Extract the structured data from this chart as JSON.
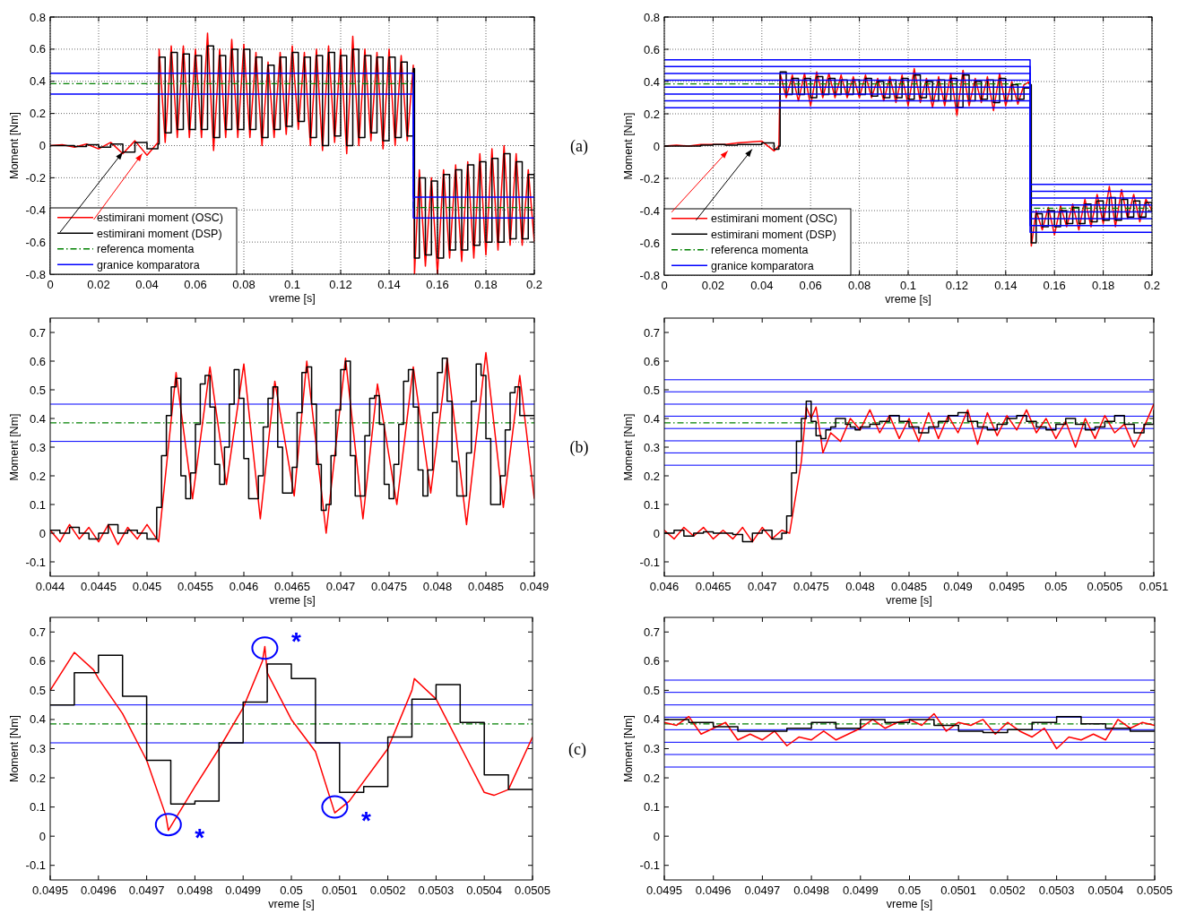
{
  "chart_data": [
    {
      "type": "line",
      "xlabel": "vreme [s]",
      "ylabel": "Moment [Nm]",
      "xlim": [
        0,
        0.2
      ],
      "ylim": [
        -0.8,
        0.8
      ],
      "xticks": [
        0,
        0.02,
        0.04,
        0.06,
        0.08,
        0.1,
        0.12,
        0.14,
        0.16,
        0.18,
        0.2
      ],
      "yticks": [
        -0.8,
        -0.6,
        -0.4,
        -0.2,
        0,
        0.2,
        0.4,
        0.6,
        0.8
      ],
      "grid": true,
      "legend": "bottom left",
      "annotations": [
        "(a)"
      ],
      "x": [
        0,
        0.005,
        0.01,
        0.015,
        0.02,
        0.025,
        0.03,
        0.035,
        0.04,
        0.0445,
        0.045,
        0.0475,
        0.05,
        0.0525,
        0.055,
        0.0575,
        0.06,
        0.0625,
        0.065,
        0.0675,
        0.07,
        0.0725,
        0.075,
        0.0775,
        0.08,
        0.0825,
        0.085,
        0.0875,
        0.09,
        0.0925,
        0.095,
        0.0975,
        0.1,
        0.1025,
        0.105,
        0.1075,
        0.11,
        0.1125,
        0.115,
        0.1175,
        0.12,
        0.1225,
        0.125,
        0.1275,
        0.13,
        0.1325,
        0.135,
        0.1375,
        0.14,
        0.1425,
        0.145,
        0.1475,
        0.15,
        0.1505,
        0.1525,
        0.155,
        0.1575,
        0.16,
        0.1625,
        0.165,
        0.1675,
        0.17,
        0.1725,
        0.175,
        0.1775,
        0.18,
        0.1825,
        0.185,
        0.1875,
        0.19,
        0.1925,
        0.195,
        0.1975,
        0.2
      ],
      "series": [
        {
          "name": "estimirani moment (OSC)",
          "color": "#ff0000",
          "values": [
            0,
            0.005,
            -0.01,
            0.01,
            -0.02,
            0.02,
            -0.05,
            0.03,
            -0.06,
            0.02,
            0.6,
            0.02,
            0.62,
            0.05,
            0.62,
            0.05,
            0.6,
            0.05,
            0.7,
            -0.03,
            0.6,
            0.05,
            0.66,
            0.05,
            0.63,
            0.05,
            0.58,
            0.0,
            0.52,
            0.05,
            0.58,
            0.07,
            0.62,
            0.1,
            0.58,
            0.0,
            0.6,
            -0.03,
            0.62,
            0.02,
            0.6,
            -0.05,
            0.68,
            0.0,
            0.6,
            0.03,
            0.58,
            -0.02,
            0.6,
            0.0,
            0.56,
            0.03,
            0.5,
            -0.8,
            -0.15,
            -0.75,
            -0.2,
            -0.8,
            -0.15,
            -0.7,
            -0.12,
            -0.72,
            -0.1,
            -0.7,
            -0.05,
            -0.68,
            -0.02,
            -0.65,
            0.0,
            -0.62,
            -0.05,
            -0.62,
            -0.15,
            -0.6
          ]
        },
        {
          "name": "estimirani moment (DSP)",
          "color": "#000000",
          "type": "step",
          "values": [
            0,
            0,
            -0.005,
            0.005,
            -0.01,
            0.01,
            -0.04,
            0.02,
            -0.02,
            0.01,
            0.55,
            0.08,
            0.58,
            0.1,
            0.57,
            0.1,
            0.56,
            0.1,
            0.62,
            0.05,
            0.56,
            0.1,
            0.6,
            0.1,
            0.6,
            0.1,
            0.55,
            0.05,
            0.5,
            0.1,
            0.55,
            0.12,
            0.58,
            0.15,
            0.55,
            0.05,
            0.56,
            0.0,
            0.58,
            0.06,
            0.56,
            0.0,
            0.6,
            0.05,
            0.56,
            0.08,
            0.55,
            0.03,
            0.55,
            0.05,
            0.52,
            0.06,
            0.48,
            -0.7,
            -0.2,
            -0.68,
            -0.22,
            -0.7,
            -0.18,
            -0.65,
            -0.15,
            -0.65,
            -0.12,
            -0.62,
            -0.1,
            -0.6,
            -0.08,
            -0.6,
            -0.05,
            -0.58,
            -0.1,
            -0.58,
            -0.18,
            -0.55
          ]
        },
        {
          "name": "referenca momenta",
          "color": "#008000",
          "type": "step",
          "line_style": "dashed",
          "x": [
            0,
            0.15,
            0.2
          ],
          "values": [
            0.385,
            -0.385,
            -0.385
          ]
        },
        {
          "name": "granice komparatora",
          "color": "#0000ff",
          "type": "step",
          "x": [
            0,
            0.15,
            0.2
          ],
          "values": [
            0.45,
            -0.32,
            -0.32
          ]
        },
        {
          "color": "#0000ff",
          "type": "step",
          "x": [
            0,
            0.15,
            0.2
          ],
          "values": [
            0.32,
            -0.45,
            -0.45
          ]
        }
      ]
    },
    {
      "type": "line",
      "xlabel": "vreme [s]",
      "ylabel": "Moment [Nm]",
      "xlim": [
        0,
        0.2
      ],
      "ylim": [
        -0.8,
        0.8
      ],
      "xticks": [
        0,
        0.02,
        0.04,
        0.06,
        0.08,
        0.1,
        0.12,
        0.14,
        0.16,
        0.18,
        0.2
      ],
      "yticks": [
        -0.8,
        -0.6,
        -0.4,
        -0.2,
        0,
        0.2,
        0.4,
        0.6,
        0.8
      ],
      "grid": true,
      "legend": "bottom left",
      "x": [
        0,
        0.005,
        0.01,
        0.015,
        0.02,
        0.025,
        0.03,
        0.035,
        0.04,
        0.045,
        0.047,
        0.0475,
        0.05,
        0.0525,
        0.055,
        0.0575,
        0.06,
        0.0625,
        0.065,
        0.0675,
        0.07,
        0.0725,
        0.075,
        0.0775,
        0.08,
        0.0825,
        0.085,
        0.0875,
        0.09,
        0.0925,
        0.095,
        0.0975,
        0.1,
        0.1025,
        0.105,
        0.1075,
        0.11,
        0.1125,
        0.115,
        0.1175,
        0.12,
        0.1225,
        0.125,
        0.1275,
        0.13,
        0.1325,
        0.135,
        0.1375,
        0.14,
        0.1425,
        0.145,
        0.1475,
        0.15,
        0.1505,
        0.1525,
        0.155,
        0.1575,
        0.16,
        0.1625,
        0.165,
        0.1675,
        0.17,
        0.1725,
        0.175,
        0.1775,
        0.18,
        0.1825,
        0.185,
        0.1875,
        0.19,
        0.1925,
        0.195,
        0.1975,
        0.2
      ],
      "series": [
        {
          "name": "estimirani moment (OSC)",
          "color": "#ff0000",
          "values": [
            0,
            0.005,
            0,
            0.01,
            0.01,
            0.01,
            0.02,
            0.025,
            0.03,
            -0.03,
            0.0,
            0.45,
            0.3,
            0.44,
            0.28,
            0.45,
            0.25,
            0.46,
            0.3,
            0.45,
            0.3,
            0.44,
            0.3,
            0.43,
            0.3,
            0.44,
            0.3,
            0.42,
            0.28,
            0.43,
            0.27,
            0.44,
            0.25,
            0.48,
            0.27,
            0.42,
            0.24,
            0.43,
            0.25,
            0.45,
            0.19,
            0.47,
            0.25,
            0.42,
            0.27,
            0.43,
            0.22,
            0.45,
            0.25,
            0.4,
            0.26,
            0.38,
            0.4,
            -0.62,
            -0.4,
            -0.52,
            -0.38,
            -0.55,
            -0.37,
            -0.5,
            -0.36,
            -0.52,
            -0.33,
            -0.5,
            -0.3,
            -0.48,
            -0.25,
            -0.5,
            -0.27,
            -0.45,
            -0.3,
            -0.47,
            -0.33,
            -0.4
          ]
        },
        {
          "name": "estimirani moment (DSP)",
          "color": "#000000",
          "type": "step",
          "values": [
            0,
            0,
            0,
            0.005,
            0.01,
            0.005,
            0.01,
            0.01,
            0.02,
            -0.02,
            0.0,
            0.46,
            0.32,
            0.42,
            0.32,
            0.42,
            0.3,
            0.43,
            0.32,
            0.42,
            0.32,
            0.41,
            0.32,
            0.41,
            0.32,
            0.42,
            0.31,
            0.4,
            0.3,
            0.41,
            0.3,
            0.42,
            0.29,
            0.44,
            0.3,
            0.4,
            0.28,
            0.41,
            0.28,
            0.42,
            0.24,
            0.44,
            0.28,
            0.4,
            0.29,
            0.41,
            0.27,
            0.42,
            0.28,
            0.38,
            0.29,
            0.36,
            0.38,
            -0.6,
            -0.42,
            -0.5,
            -0.4,
            -0.5,
            -0.4,
            -0.48,
            -0.38,
            -0.48,
            -0.36,
            -0.47,
            -0.34,
            -0.46,
            -0.32,
            -0.46,
            -0.33,
            -0.44,
            -0.34,
            -0.44,
            -0.35,
            -0.4
          ]
        },
        {
          "name": "referenca momenta",
          "color": "#008000",
          "type": "step",
          "line_style": "dashed",
          "x": [
            0,
            0.15,
            0.2
          ],
          "values": [
            0.385,
            -0.385,
            -0.385
          ]
        },
        {
          "name": "granice komparatora",
          "color": "#0000ff",
          "type": "step",
          "x": [
            0,
            0.15,
            0.2
          ],
          "values": [
            0.535,
            -0.237,
            -0.237
          ]
        },
        {
          "color": "#0000ff",
          "type": "step",
          "x": [
            0,
            0.15,
            0.2
          ],
          "values": [
            0.493,
            -0.28,
            -0.28
          ]
        },
        {
          "color": "#0000ff",
          "type": "step",
          "x": [
            0,
            0.15,
            0.2
          ],
          "values": [
            0.45,
            -0.322,
            -0.322
          ]
        },
        {
          "color": "#0000ff",
          "type": "step",
          "x": [
            0,
            0.15,
            0.2
          ],
          "values": [
            0.408,
            -0.365,
            -0.365
          ]
        },
        {
          "color": "#0000ff",
          "type": "step",
          "x": [
            0,
            0.15,
            0.2
          ],
          "values": [
            0.365,
            -0.408,
            -0.408
          ]
        },
        {
          "color": "#0000ff",
          "type": "step",
          "x": [
            0,
            0.15,
            0.2
          ],
          "values": [
            0.322,
            -0.45,
            -0.45
          ]
        },
        {
          "color": "#0000ff",
          "type": "step",
          "x": [
            0,
            0.15,
            0.2
          ],
          "values": [
            0.28,
            -0.493,
            -0.493
          ]
        },
        {
          "color": "#0000ff",
          "type": "step",
          "x": [
            0,
            0.15,
            0.2
          ],
          "values": [
            0.237,
            -0.535,
            -0.535
          ]
        }
      ]
    },
    {
      "type": "line",
      "xlabel": "vreme [s]",
      "ylabel": "Moment [Nm]",
      "xlim": [
        0.044,
        0.049
      ],
      "ylim": [
        -0.15,
        0.75
      ],
      "xticks": [
        0.044,
        0.0445,
        0.045,
        0.0455,
        0.046,
        0.0465,
        0.047,
        0.0475,
        0.048,
        0.0485,
        0.049
      ],
      "yticks": [
        -0.1,
        0,
        0.1,
        0.2,
        0.3,
        0.4,
        0.5,
        0.6,
        0.7
      ],
      "annotations": [
        "(b)"
      ],
      "ref_lines": [
        {
          "axis": "y",
          "value": 0.45,
          "color": "#0000ff"
        },
        {
          "axis": "y",
          "value": 0.385,
          "color": "#008000",
          "line_style": "dashed"
        },
        {
          "axis": "y",
          "value": 0.32,
          "color": "#0000ff"
        }
      ],
      "series": [
        {
          "color": "#ff0000",
          "x": [
            0.044,
            0.0441,
            0.0442,
            0.0443,
            0.0444,
            0.0445,
            0.0446,
            0.0447,
            0.0448,
            0.0449,
            0.045,
            0.04512,
            0.0453,
            0.04547,
            0.04565,
            0.04582,
            0.046,
            0.04617,
            0.04632,
            0.04652,
            0.04665,
            0.04685,
            0.04705,
            0.04723,
            0.04738,
            0.04758,
            0.04775,
            0.04793,
            0.0481,
            0.0483,
            0.0485,
            0.04868,
            0.04885,
            0.049
          ],
          "values": [
            0.01,
            -0.03,
            0.03,
            -0.02,
            0.02,
            -0.03,
            0.03,
            -0.04,
            0.02,
            -0.02,
            0.03,
            -0.03,
            0.56,
            0.12,
            0.58,
            0.17,
            0.59,
            0.05,
            0.53,
            0.13,
            0.6,
            0.0,
            0.61,
            0.05,
            0.52,
            0.1,
            0.58,
            0.14,
            0.61,
            0.03,
            0.63,
            0.09,
            0.55,
            0.12
          ]
        },
        {
          "color": "#000000",
          "type": "step",
          "x": [
            0.044,
            0.0441,
            0.0442,
            0.0443,
            0.0444,
            0.0445,
            0.0446,
            0.0447,
            0.0448,
            0.0449,
            0.045,
            0.04505,
            0.0451,
            0.04515,
            0.0452,
            0.04525,
            0.0453,
            0.04535,
            0.0454,
            0.04545,
            0.0455,
            0.04555,
            0.0456,
            0.04565,
            0.0457,
            0.04575,
            0.0458,
            0.04585,
            0.0459,
            0.04595,
            0.046,
            0.04605,
            0.0461,
            0.04615,
            0.0462,
            0.04625,
            0.0463,
            0.04635,
            0.0464,
            0.04645,
            0.0465,
            0.04655,
            0.0466,
            0.04665,
            0.0467,
            0.04675,
            0.0468,
            0.04685,
            0.0469,
            0.04695,
            0.047,
            0.04705,
            0.0471,
            0.04715,
            0.0472,
            0.04725,
            0.0473,
            0.04735,
            0.0474,
            0.04745,
            0.0475,
            0.04755,
            0.0476,
            0.04765,
            0.0477,
            0.04775,
            0.0478,
            0.04785,
            0.0479,
            0.04795,
            0.048,
            0.04805,
            0.0481,
            0.04815,
            0.0482,
            0.04825,
            0.0483,
            0.04835,
            0.0484,
            0.04845,
            0.0485,
            0.04855,
            0.0486,
            0.04865,
            0.0487,
            0.04875,
            0.0488,
            0.04885,
            0.0489,
            0.04895,
            0.049
          ],
          "values": [
            0.01,
            0,
            0.02,
            0,
            -0.02,
            0,
            0.03,
            0,
            0.01,
            0,
            -0.02,
            -0.02,
            0.09,
            0.27,
            0.41,
            0.51,
            0.54,
            0.2,
            0.12,
            0.21,
            0.38,
            0.52,
            0.55,
            0.44,
            0.24,
            0.17,
            0.3,
            0.45,
            0.57,
            0.47,
            0.26,
            0.12,
            0.12,
            0.2,
            0.37,
            0.47,
            0.51,
            0.3,
            0.14,
            0.14,
            0.23,
            0.42,
            0.56,
            0.58,
            0.45,
            0.24,
            0.08,
            0.1,
            0.27,
            0.43,
            0.57,
            0.6,
            0.27,
            0.13,
            0.13,
            0.34,
            0.47,
            0.48,
            0.38,
            0.17,
            0.12,
            0.24,
            0.38,
            0.53,
            0.57,
            0.44,
            0.22,
            0.13,
            0.22,
            0.42,
            0.56,
            0.61,
            0.46,
            0.25,
            0.13,
            0.13,
            0.28,
            0.46,
            0.59,
            0.55,
            0.33,
            0.1,
            0.1,
            0.2,
            0.36,
            0.49,
            0.51,
            0.41,
            0.41,
            0.41,
            0.41
          ]
        }
      ]
    },
    {
      "type": "line",
      "xlabel": "vreme [s]",
      "ylabel": "Moment [Nm]",
      "xlim": [
        0.046,
        0.051
      ],
      "ylim": [
        -0.15,
        0.75
      ],
      "xticks": [
        0.046,
        0.0465,
        0.047,
        0.0475,
        0.048,
        0.0485,
        0.049,
        0.0495,
        0.05,
        0.0505,
        0.051
      ],
      "yticks": [
        -0.1,
        0,
        0.1,
        0.2,
        0.3,
        0.4,
        0.5,
        0.6,
        0.7
      ],
      "ref_lines": [
        {
          "axis": "y",
          "value": 0.535,
          "color": "#0000ff"
        },
        {
          "axis": "y",
          "value": 0.493,
          "color": "#0000ff"
        },
        {
          "axis": "y",
          "value": 0.45,
          "color": "#0000ff"
        },
        {
          "axis": "y",
          "value": 0.408,
          "color": "#0000ff"
        },
        {
          "axis": "y",
          "value": 0.365,
          "color": "#0000ff"
        },
        {
          "axis": "y",
          "value": 0.322,
          "color": "#0000ff"
        },
        {
          "axis": "y",
          "value": 0.28,
          "color": "#0000ff"
        },
        {
          "axis": "y",
          "value": 0.237,
          "color": "#0000ff"
        },
        {
          "axis": "y",
          "value": 0.385,
          "color": "#008000",
          "line_style": "dashed"
        }
      ],
      "series": [
        {
          "color": "#ff0000",
          "x": [
            0.046,
            0.0461,
            0.0462,
            0.0463,
            0.0464,
            0.0465,
            0.0466,
            0.0467,
            0.0468,
            0.0469,
            0.047,
            0.0471,
            0.0472,
            0.04728,
            0.0474,
            0.04745,
            0.0475,
            0.04755,
            0.0476,
            0.04762,
            0.0477,
            0.0478,
            0.0479,
            0.048,
            0.0481,
            0.0482,
            0.0483,
            0.0484,
            0.0485,
            0.0486,
            0.0487,
            0.0488,
            0.0489,
            0.049,
            0.0491,
            0.0492,
            0.0493,
            0.0494,
            0.0495,
            0.0496,
            0.0497,
            0.0498,
            0.0499,
            0.05,
            0.0501,
            0.0502,
            0.0503,
            0.0504,
            0.0505,
            0.0506,
            0.0507,
            0.0508,
            0.0509,
            0.051
          ],
          "values": [
            0.01,
            -0.02,
            0.02,
            -0.01,
            0.02,
            -0.02,
            0.01,
            -0.02,
            0.02,
            -0.03,
            0.02,
            -0.02,
            0.01,
            0.0,
            0.25,
            0.44,
            0.4,
            0.44,
            0.33,
            0.28,
            0.35,
            0.32,
            0.4,
            0.36,
            0.43,
            0.35,
            0.41,
            0.33,
            0.4,
            0.32,
            0.42,
            0.33,
            0.41,
            0.35,
            0.43,
            0.31,
            0.42,
            0.34,
            0.41,
            0.36,
            0.43,
            0.35,
            0.4,
            0.33,
            0.39,
            0.3,
            0.4,
            0.33,
            0.41,
            0.35,
            0.38,
            0.3,
            0.37,
            0.45
          ]
        },
        {
          "color": "#000000",
          "type": "step",
          "x": [
            0.046,
            0.0461,
            0.0462,
            0.0463,
            0.0464,
            0.0465,
            0.0466,
            0.0467,
            0.0468,
            0.0469,
            0.047,
            0.0471,
            0.0472,
            0.04725,
            0.0473,
            0.04735,
            0.0474,
            0.04745,
            0.0475,
            0.04755,
            0.0476,
            0.04765,
            0.0477,
            0.04775,
            0.0478,
            0.04785,
            0.0479,
            0.04795,
            0.048,
            0.0481,
            0.0482,
            0.0483,
            0.0484,
            0.0485,
            0.0486,
            0.0487,
            0.0488,
            0.0489,
            0.049,
            0.0491,
            0.0492,
            0.0493,
            0.0494,
            0.0495,
            0.0496,
            0.0497,
            0.0498,
            0.0499,
            0.05,
            0.0501,
            0.0502,
            0.0503,
            0.0504,
            0.0505,
            0.0506,
            0.0507,
            0.0508,
            0.0509,
            0.051
          ],
          "values": [
            0,
            0.01,
            -0.01,
            0,
            0.005,
            0,
            0,
            -0.005,
            -0.03,
            0,
            0.01,
            -0.02,
            0,
            0.06,
            0.21,
            0.32,
            0.4,
            0.46,
            0.39,
            0.34,
            0.33,
            0.36,
            0.37,
            0.4,
            0.4,
            0.38,
            0.37,
            0.36,
            0.37,
            0.38,
            0.39,
            0.41,
            0.39,
            0.37,
            0.35,
            0.37,
            0.39,
            0.41,
            0.42,
            0.39,
            0.37,
            0.36,
            0.38,
            0.4,
            0.41,
            0.39,
            0.37,
            0.36,
            0.38,
            0.4,
            0.38,
            0.36,
            0.37,
            0.39,
            0.41,
            0.38,
            0.35,
            0.38,
            0.43
          ]
        }
      ]
    },
    {
      "type": "line",
      "xlabel": "vreme [s]",
      "ylabel": "Moment [Nm]",
      "xlim": [
        0.0495,
        0.0505
      ],
      "ylim": [
        -0.15,
        0.75
      ],
      "xticks": [
        0.0495,
        0.0496,
        0.0497,
        0.0498,
        0.0499,
        0.05,
        0.0501,
        0.0502,
        0.0503,
        0.0504,
        0.0505
      ],
      "yticks": [
        -0.1,
        0,
        0.1,
        0.2,
        0.3,
        0.4,
        0.5,
        0.6,
        0.7
      ],
      "annotations": [
        "(c)",
        {
          "text": "*",
          "x": 0.049745,
          "y": 0.04
        },
        {
          "text": "*",
          "x": 0.049945,
          "y": 0.645
        },
        {
          "text": "*",
          "x": 0.05009,
          "y": 0.1
        }
      ],
      "ref_lines": [
        {
          "axis": "y",
          "value": 0.45,
          "color": "#0000ff"
        },
        {
          "axis": "y",
          "value": 0.385,
          "color": "#008000",
          "line_style": "dashed"
        },
        {
          "axis": "y",
          "value": 0.32,
          "color": "#0000ff"
        }
      ],
      "series": [
        {
          "color": "#ff0000",
          "x": [
            0.0495,
            0.04955,
            0.04959,
            0.0496,
            0.04965,
            0.0497,
            0.04974,
            0.049745,
            0.0498,
            0.04985,
            0.0499,
            0.04994,
            0.049945,
            0.04995,
            0.05,
            0.05005,
            0.05009,
            0.05012,
            0.0502,
            0.05025,
            0.050255,
            0.0503,
            0.05035,
            0.0504,
            0.05042,
            0.05045,
            0.0505
          ],
          "values": [
            0.5,
            0.63,
            0.57,
            0.54,
            0.42,
            0.26,
            0.07,
            0.02,
            0.17,
            0.3,
            0.44,
            0.6,
            0.65,
            0.56,
            0.4,
            0.29,
            0.08,
            0.12,
            0.3,
            0.5,
            0.54,
            0.47,
            0.31,
            0.15,
            0.14,
            0.16,
            0.34
          ]
        },
        {
          "color": "#000000",
          "type": "step",
          "x": [
            0.0495,
            0.04955,
            0.0496,
            0.04965,
            0.0497,
            0.04975,
            0.0498,
            0.04985,
            0.0499,
            0.04995,
            0.05,
            0.05005,
            0.0501,
            0.05015,
            0.0502,
            0.05025,
            0.0503,
            0.05035,
            0.0504,
            0.05045,
            0.0505
          ],
          "values": [
            0.45,
            0.56,
            0.62,
            0.48,
            0.26,
            0.11,
            0.12,
            0.32,
            0.46,
            0.59,
            0.54,
            0.32,
            0.15,
            0.17,
            0.34,
            0.47,
            0.52,
            0.39,
            0.21,
            0.16,
            0.16
          ]
        }
      ]
    },
    {
      "type": "line",
      "xlabel": "vreme [s]",
      "ylabel": "Moment [Nm]",
      "xlim": [
        0.0495,
        0.0505
      ],
      "ylim": [
        -0.15,
        0.75
      ],
      "xticks": [
        0.0495,
        0.0496,
        0.0497,
        0.0498,
        0.0499,
        0.05,
        0.0501,
        0.0502,
        0.0503,
        0.0504,
        0.0505
      ],
      "yticks": [
        -0.1,
        0,
        0.1,
        0.2,
        0.3,
        0.4,
        0.5,
        0.6,
        0.7
      ],
      "ref_lines": [
        {
          "axis": "y",
          "value": 0.535,
          "color": "#0000ff"
        },
        {
          "axis": "y",
          "value": 0.493,
          "color": "#0000ff"
        },
        {
          "axis": "y",
          "value": 0.45,
          "color": "#0000ff"
        },
        {
          "axis": "y",
          "value": 0.408,
          "color": "#0000ff"
        },
        {
          "axis": "y",
          "value": 0.365,
          "color": "#0000ff"
        },
        {
          "axis": "y",
          "value": 0.322,
          "color": "#0000ff"
        },
        {
          "axis": "y",
          "value": 0.28,
          "color": "#0000ff"
        },
        {
          "axis": "y",
          "value": 0.237,
          "color": "#0000ff"
        },
        {
          "axis": "y",
          "value": 0.385,
          "color": "#008000",
          "line_style": "dashed"
        }
      ],
      "series": [
        {
          "color": "#ff0000",
          "x": [
            0.0495,
            0.049525,
            0.04955,
            0.049575,
            0.0496,
            0.049625,
            0.04965,
            0.049675,
            0.0497,
            0.049725,
            0.04975,
            0.049775,
            0.0498,
            0.049825,
            0.04985,
            0.049875,
            0.0499,
            0.049925,
            0.04995,
            0.049975,
            0.05,
            0.050025,
            0.05005,
            0.050075,
            0.0501,
            0.050125,
            0.05015,
            0.050175,
            0.0502,
            0.050225,
            0.05025,
            0.050275,
            0.0503,
            0.050325,
            0.05035,
            0.050375,
            0.0504,
            0.050425,
            0.05045,
            0.050475,
            0.0505
          ],
          "values": [
            0.39,
            0.38,
            0.41,
            0.35,
            0.37,
            0.39,
            0.33,
            0.35,
            0.33,
            0.36,
            0.31,
            0.34,
            0.33,
            0.36,
            0.33,
            0.35,
            0.37,
            0.4,
            0.37,
            0.39,
            0.4,
            0.38,
            0.42,
            0.36,
            0.39,
            0.38,
            0.4,
            0.35,
            0.39,
            0.36,
            0.34,
            0.37,
            0.3,
            0.34,
            0.33,
            0.35,
            0.33,
            0.4,
            0.37,
            0.39,
            0.38
          ]
        },
        {
          "color": "#000000",
          "type": "step",
          "x": [
            0.0495,
            0.04955,
            0.0496,
            0.04965,
            0.0497,
            0.04975,
            0.0498,
            0.04985,
            0.0499,
            0.04995,
            0.05,
            0.05005,
            0.0501,
            0.05015,
            0.0502,
            0.05025,
            0.0503,
            0.05035,
            0.0504,
            0.05045,
            0.0505
          ],
          "values": [
            0.4,
            0.39,
            0.375,
            0.36,
            0.36,
            0.37,
            0.39,
            0.37,
            0.4,
            0.39,
            0.4,
            0.38,
            0.36,
            0.355,
            0.365,
            0.39,
            0.41,
            0.385,
            0.37,
            0.36,
            0.36
          ]
        }
      ]
    }
  ]
}
